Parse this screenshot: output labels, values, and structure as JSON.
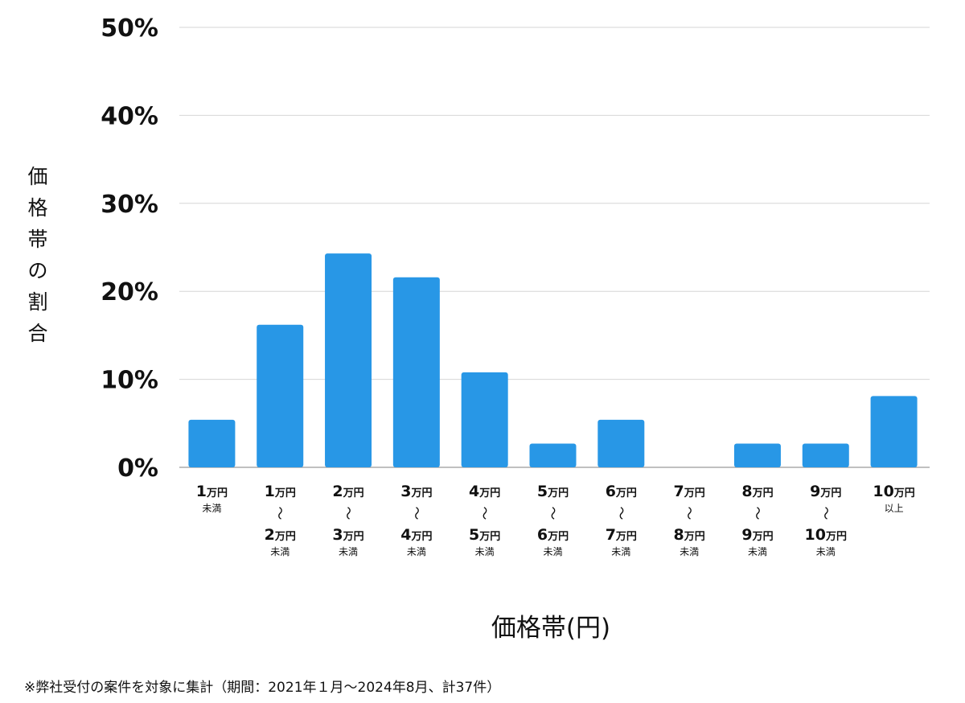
{
  "chart_data": {
    "type": "bar",
    "title": "",
    "xlabel": "価格帯(円)",
    "ylabel": "価格帯の割合",
    "ylim": [
      0,
      50
    ],
    "yticks": [
      "0%",
      "10%",
      "20%",
      "30%",
      "40%",
      "50%"
    ],
    "ytick_values": [
      0,
      10,
      20,
      30,
      40,
      50
    ],
    "grid": true,
    "bar_color": "#2897e6",
    "categories": [
      [
        "1",
        "万円",
        "未満"
      ],
      [
        "1",
        "万円",
        "〜",
        "2",
        "万円",
        "未満"
      ],
      [
        "2",
        "万円",
        "〜",
        "3",
        "万円",
        "未満"
      ],
      [
        "3",
        "万円",
        "〜",
        "4",
        "万円",
        "未満"
      ],
      [
        "4",
        "万円",
        "〜",
        "5",
        "万円",
        "未満"
      ],
      [
        "5",
        "万円",
        "〜",
        "6",
        "万円",
        "未満"
      ],
      [
        "6",
        "万円",
        "〜",
        "7",
        "万円",
        "未満"
      ],
      [
        "7",
        "万円",
        "〜",
        "8",
        "万円",
        "未満"
      ],
      [
        "8",
        "万円",
        "〜",
        "9",
        "万円",
        "未満"
      ],
      [
        "9",
        "万円",
        "〜",
        "10",
        "万円",
        "未満"
      ],
      [
        "10",
        "万円",
        "以上"
      ]
    ],
    "values": [
      5.4,
      16.2,
      24.3,
      21.6,
      10.8,
      2.7,
      5.4,
      0,
      2.7,
      2.7,
      8.1
    ]
  },
  "footnote": "※弊社受付の案件を対象に集計（期間：2021年１月〜2024年8月、計37件）"
}
